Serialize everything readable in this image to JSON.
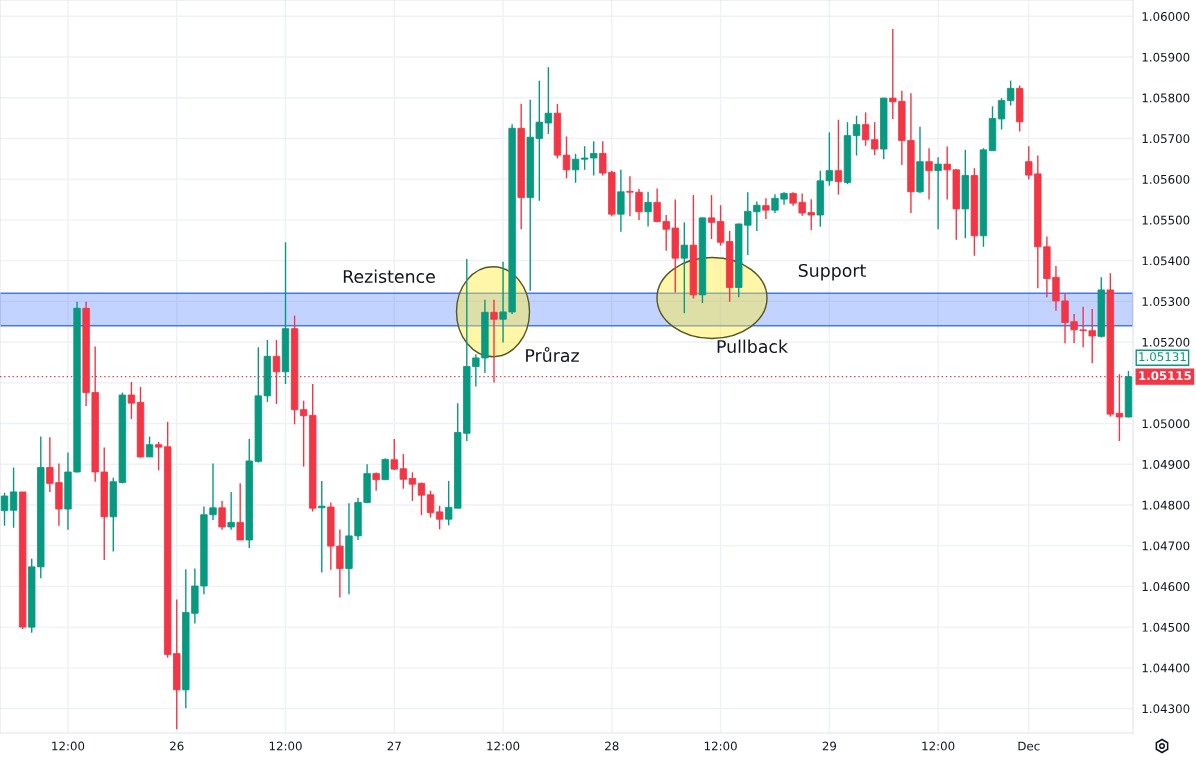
{
  "chart_data": {
    "type": "candlestick",
    "categories": [
      null,
      null,
      null,
      null,
      null,
      null,
      null,
      "12:00",
      null,
      null,
      null,
      null,
      null,
      null,
      null,
      null,
      null,
      null,
      null,
      "26",
      null,
      null,
      null,
      null,
      null,
      null,
      null,
      null,
      null,
      null,
      null,
      "12:00",
      null,
      null,
      null,
      null,
      null,
      null,
      null,
      null,
      null,
      null,
      null,
      "27",
      null,
      null,
      null,
      null,
      null,
      null,
      null,
      null,
      null,
      null,
      null,
      "12:00",
      null,
      null,
      null,
      null,
      null,
      null,
      null,
      null,
      null,
      null,
      null,
      "28",
      null,
      null,
      null,
      null,
      null,
      null,
      null,
      null,
      null,
      null,
      null,
      "12:00",
      null,
      null,
      null,
      null,
      null,
      null,
      null,
      null,
      null,
      null,
      null,
      "29",
      null,
      null,
      null,
      null,
      null,
      null,
      null,
      null,
      null,
      null,
      null,
      "12:00",
      null,
      null,
      null,
      null,
      null,
      null,
      null,
      null,
      null,
      "Dec",
      null,
      null,
      null,
      null,
      null,
      null,
      null,
      null,
      null,
      null,
      null
    ],
    "ohlc": [
      [
        1.04786,
        1.0483,
        1.04749,
        1.04822
      ],
      [
        1.04787,
        1.04892,
        1.04744,
        1.04832
      ],
      [
        1.04832,
        1.04832,
        1.04495,
        1.045
      ],
      [
        1.045,
        1.04668,
        1.04486,
        1.04648
      ],
      [
        1.04648,
        1.04968,
        1.0462,
        1.04892
      ],
      [
        1.04892,
        1.04966,
        1.04832,
        1.04853
      ],
      [
        1.04855,
        1.04902,
        1.04749,
        1.0479
      ],
      [
        1.0479,
        1.04929,
        1.04739,
        1.04881
      ],
      [
        1.04881,
        1.05299,
        1.0488,
        1.05283
      ],
      [
        1.05283,
        1.05299,
        1.05043,
        1.05076
      ],
      [
        1.05076,
        1.05189,
        1.04857,
        1.04881
      ],
      [
        1.04881,
        1.04941,
        1.04665,
        1.04771
      ],
      [
        1.04771,
        1.04867,
        1.04686,
        1.04857
      ],
      [
        1.04855,
        1.05076,
        1.04853,
        1.0507
      ],
      [
        1.0507,
        1.05102,
        1.05011,
        1.0505
      ],
      [
        1.05052,
        1.0509,
        1.04916,
        1.04918
      ],
      [
        1.04918,
        1.04968,
        1.04918,
        1.04948
      ],
      [
        1.04948,
        1.04955,
        1.04885,
        1.04942
      ],
      [
        1.04943,
        1.05004,
        1.04425,
        1.04433
      ],
      [
        1.04435,
        1.04568,
        1.04249,
        1.04346
      ],
      [
        1.04346,
        1.04642,
        1.04301,
        1.04536
      ],
      [
        1.04534,
        1.04644,
        1.04509,
        1.04601
      ],
      [
        1.04601,
        1.04796,
        1.04581,
        1.04776
      ],
      [
        1.04776,
        1.04902,
        1.04763,
        1.04793
      ],
      [
        1.04793,
        1.0481,
        1.04739,
        1.04746
      ],
      [
        1.04746,
        1.04832,
        1.04739,
        1.04757
      ],
      [
        1.04757,
        1.04853,
        1.04714,
        1.04714
      ],
      [
        1.04714,
        1.04962,
        1.04694,
        1.04908
      ],
      [
        1.04907,
        1.05187,
        1.04904,
        1.05068
      ],
      [
        1.05068,
        1.05205,
        1.05053,
        1.05165
      ],
      [
        1.05165,
        1.05205,
        1.05048,
        1.05127
      ],
      [
        1.05127,
        1.05445,
        1.05097,
        1.05233
      ],
      [
        1.05233,
        1.05265,
        1.04998,
        1.05034
      ],
      [
        1.05034,
        1.05056,
        1.04894,
        1.05019
      ],
      [
        1.0502,
        1.05097,
        1.04784,
        1.04792
      ],
      [
        1.04793,
        1.04859,
        1.04634,
        1.04797
      ],
      [
        1.04795,
        1.04806,
        1.04641,
        1.04699
      ],
      [
        1.04699,
        1.0474,
        1.04573,
        1.04644
      ],
      [
        1.04644,
        1.04804,
        1.04581,
        1.04724
      ],
      [
        1.04724,
        1.04818,
        1.04714,
        1.04806
      ],
      [
        1.04806,
        1.049,
        1.04804,
        1.04877
      ],
      [
        1.04877,
        1.0488,
        1.04835,
        1.04862
      ],
      [
        1.04862,
        1.04914,
        1.04862,
        1.04912
      ],
      [
        1.04911,
        1.04962,
        1.04886,
        1.04888
      ],
      [
        1.04889,
        1.04925,
        1.0484,
        1.04863
      ],
      [
        1.04865,
        1.0488,
        1.0481,
        1.04851
      ],
      [
        1.04853,
        1.04855,
        1.04775,
        1.04824
      ],
      [
        1.04825,
        1.04835,
        1.04769,
        1.04781
      ],
      [
        1.04783,
        1.04798,
        1.0474,
        1.04765
      ],
      [
        1.04765,
        1.04859,
        1.0475,
        1.04794
      ],
      [
        1.04792,
        1.0505,
        1.04792,
        1.04978
      ],
      [
        1.04976,
        1.05404,
        1.04957,
        1.0514
      ],
      [
        1.0514,
        1.0517,
        1.05091,
        1.05161
      ],
      [
        1.05161,
        1.05304,
        1.05124,
        1.05273
      ],
      [
        1.05273,
        1.05304,
        1.05101,
        1.05256
      ],
      [
        1.05256,
        1.05397,
        1.05199,
        1.05274
      ],
      [
        1.05274,
        1.05735,
        1.05269,
        1.05725
      ],
      [
        1.05725,
        1.05785,
        1.05477,
        1.05555
      ],
      [
        1.05555,
        1.05795,
        1.05326,
        1.05703
      ],
      [
        1.057,
        1.05842,
        1.05547,
        1.0574
      ],
      [
        1.05738,
        1.05875,
        1.05711,
        1.05762
      ],
      [
        1.05762,
        1.05785,
        1.05651,
        1.05659
      ],
      [
        1.05659,
        1.05705,
        1.05602,
        1.05623
      ],
      [
        1.05623,
        1.05662,
        1.05591,
        1.05649
      ],
      [
        1.05649,
        1.05681,
        1.05623,
        1.05652
      ],
      [
        1.05652,
        1.05693,
        1.05609,
        1.05663
      ],
      [
        1.05663,
        1.05693,
        1.05609,
        1.05615
      ],
      [
        1.05617,
        1.05621,
        1.05509,
        1.05514
      ],
      [
        1.05514,
        1.05623,
        1.05471,
        1.05569
      ],
      [
        1.0557,
        1.05607,
        1.05509,
        1.05568
      ],
      [
        1.05568,
        1.05576,
        1.055,
        1.0552
      ],
      [
        1.0552,
        1.05569,
        1.05484,
        1.05543
      ],
      [
        1.05543,
        1.05577,
        1.05494,
        1.05496
      ],
      [
        1.05496,
        1.05512,
        1.05424,
        1.05477
      ],
      [
        1.0548,
        1.0555,
        1.05322,
        1.05406
      ],
      [
        1.05406,
        1.05494,
        1.05271,
        1.05438
      ],
      [
        1.05438,
        1.05561,
        1.05307,
        1.05316
      ],
      [
        1.05316,
        1.05506,
        1.05296,
        1.05505
      ],
      [
        1.05505,
        1.05561,
        1.05453,
        1.05494
      ],
      [
        1.05496,
        1.05536,
        1.05437,
        1.05445
      ],
      [
        1.05447,
        1.05473,
        1.05299,
        1.05334
      ],
      [
        1.05334,
        1.05491,
        1.0531,
        1.0549
      ],
      [
        1.05487,
        1.05568,
        1.05414,
        1.05521
      ],
      [
        1.0552,
        1.05545,
        1.05473,
        1.05536
      ],
      [
        1.05535,
        1.05553,
        1.05502,
        1.05524
      ],
      [
        1.05524,
        1.05563,
        1.05517,
        1.05553
      ],
      [
        1.05551,
        1.05568,
        1.05537,
        1.05565
      ],
      [
        1.05565,
        1.05568,
        1.05535,
        1.05541
      ],
      [
        1.05543,
        1.05565,
        1.0551,
        1.05517
      ],
      [
        1.05518,
        1.05551,
        1.05475,
        1.05512
      ],
      [
        1.05512,
        1.05621,
        1.05483,
        1.05596
      ],
      [
        1.05596,
        1.05715,
        1.05584,
        1.05621
      ],
      [
        1.05621,
        1.05746,
        1.05562,
        1.05594
      ],
      [
        1.05592,
        1.0574,
        1.05588,
        1.05707
      ],
      [
        1.05707,
        1.05756,
        1.05658,
        1.05734
      ],
      [
        1.05734,
        1.05764,
        1.05682,
        1.05697
      ],
      [
        1.05697,
        1.0574,
        1.05659,
        1.05674
      ],
      [
        1.05674,
        1.058,
        1.05649,
        1.05799
      ],
      [
        1.05799,
        1.05969,
        1.05748,
        1.0579
      ],
      [
        1.05791,
        1.05817,
        1.05635,
        1.05695
      ],
      [
        1.05695,
        1.05811,
        1.05517,
        1.05569
      ],
      [
        1.05569,
        1.05729,
        1.05566,
        1.05643
      ],
      [
        1.05643,
        1.05676,
        1.0555,
        1.05621
      ],
      [
        1.05621,
        1.05654,
        1.05477,
        1.05637
      ],
      [
        1.05637,
        1.0568,
        1.0555,
        1.05623
      ],
      [
        1.05623,
        1.05625,
        1.05451,
        1.05527
      ],
      [
        1.05527,
        1.05672,
        1.05455,
        1.05609
      ],
      [
        1.05609,
        1.05627,
        1.05412,
        1.05461
      ],
      [
        1.05461,
        1.05676,
        1.05434,
        1.05672
      ],
      [
        1.0567,
        1.05779,
        1.0567,
        1.05749
      ],
      [
        1.05748,
        1.05799,
        1.05722,
        1.05793
      ],
      [
        1.05793,
        1.05842,
        1.05781,
        1.05823
      ],
      [
        1.05823,
        1.0583,
        1.05717,
        1.05741
      ],
      [
        1.05643,
        1.05681,
        1.05599,
        1.0561
      ],
      [
        1.05613,
        1.05658,
        1.05332,
        1.05434
      ],
      [
        1.05434,
        1.05459,
        1.0531,
        1.05356
      ],
      [
        1.05359,
        1.05387,
        1.05277,
        1.05301
      ],
      [
        1.05301,
        1.05318,
        1.05197,
        1.05248
      ],
      [
        1.0525,
        1.05269,
        1.05197,
        1.0523
      ],
      [
        1.0523,
        1.05287,
        1.05187,
        1.05228
      ],
      [
        1.05228,
        1.05281,
        1.05148,
        1.05215
      ],
      [
        1.05214,
        1.05359,
        1.05211,
        1.05328
      ],
      [
        1.05328,
        1.05369,
        1.05017,
        1.05023
      ],
      [
        1.05025,
        1.05121,
        1.04957,
        1.05016
      ],
      [
        1.05016,
        1.05129,
        1.05015,
        1.05115
      ]
    ],
    "colors": [
      "#089981",
      "#089981",
      "#f23645",
      "#089981",
      "#089981",
      "#f23645",
      "#f23645",
      "#089981",
      "#089981",
      "#f23645",
      "#f23645",
      "#f23645",
      "#089981",
      "#089981",
      "#f23645",
      "#f23645",
      "#089981",
      "#f23645",
      "#f23645",
      "#f23645",
      "#089981",
      "#089981",
      "#089981",
      "#089981",
      "#f23645",
      "#089981",
      "#f23645",
      "#089981",
      "#089981",
      "#089981",
      "#f23645",
      "#089981",
      "#f23645",
      "#f23645",
      "#f23645",
      "#089981",
      "#f23645",
      "#f23645",
      "#089981",
      "#089981",
      "#089981",
      "#f23645",
      "#089981",
      "#f23645",
      "#f23645",
      "#f23645",
      "#f23645",
      "#f23645",
      "#f23645",
      "#089981",
      "#089981",
      "#089981",
      "#089981",
      "#089981",
      "#f23645",
      "#089981",
      "#089981",
      "#f23645",
      "#089981",
      "#089981",
      "#089981",
      "#f23645",
      "#f23645",
      "#089981",
      "#089981",
      "#089981",
      "#f23645",
      "#f23645",
      "#089981",
      "#f23645",
      "#f23645",
      "#089981",
      "#f23645",
      "#f23645",
      "#f23645",
      "#089981",
      "#f23645",
      "#089981",
      "#f23645",
      "#f23645",
      "#f23645",
      "#089981",
      "#089981",
      "#089981",
      "#f23645",
      "#089981",
      "#089981",
      "#f23645",
      "#f23645",
      "#f23645",
      "#089981",
      "#089981",
      "#f23645",
      "#089981",
      "#089981",
      "#f23645",
      "#f23645",
      "#089981",
      "#f23645",
      "#f23645",
      "#f23645",
      "#089981",
      "#f23645",
      "#089981",
      "#f23645",
      "#f23645",
      "#089981",
      "#f23645",
      "#089981",
      "#089981",
      "#089981",
      "#089981",
      "#f23645",
      "#f23645",
      "#f23645",
      "#f23645",
      "#f23645",
      "#f23645",
      "#f23645",
      "#f23645",
      "#f23645",
      "#089981",
      "#f23645",
      "#f23645",
      "#089981"
    ],
    "ylim": [
      1.0424,
      1.0604
    ],
    "yticks": [
      {
        "value": 1.043,
        "label": "1.04300"
      },
      {
        "value": 1.044,
        "label": "1.04400"
      },
      {
        "value": 1.045,
        "label": "1.04500"
      },
      {
        "value": 1.046,
        "label": "1.04600"
      },
      {
        "value": 1.047,
        "label": "1.04700"
      },
      {
        "value": 1.048,
        "label": "1.04800"
      },
      {
        "value": 1.049,
        "label": "1.04900"
      },
      {
        "value": 1.05,
        "label": "1.05000"
      },
      {
        "value": 1.051,
        "label": null
      },
      {
        "value": 1.052,
        "label": "1.05200"
      },
      {
        "value": 1.053,
        "label": "1.05300"
      },
      {
        "value": 1.054,
        "label": "1.05400"
      },
      {
        "value": 1.055,
        "label": "1.05500"
      },
      {
        "value": 1.056,
        "label": "1.05600"
      },
      {
        "value": 1.057,
        "label": "1.05700"
      },
      {
        "value": 1.058,
        "label": "1.05800"
      },
      {
        "value": 1.059,
        "label": "1.05900"
      },
      {
        "value": 1.06,
        "label": "1.06000"
      }
    ],
    "grid": true,
    "bands": [
      {
        "axis": "y",
        "from": 1.0524,
        "to": 1.0532,
        "color": "#2962ff"
      }
    ],
    "ref_lines": [
      {
        "axis": "y",
        "value": 1.05115,
        "label": "1.05115",
        "color": "#f23645",
        "line_style": "dotted"
      }
    ],
    "annotations": [
      "Rezistence",
      "Support",
      "Průraz",
      "Pullback",
      "1.05131"
    ]
  }
}
